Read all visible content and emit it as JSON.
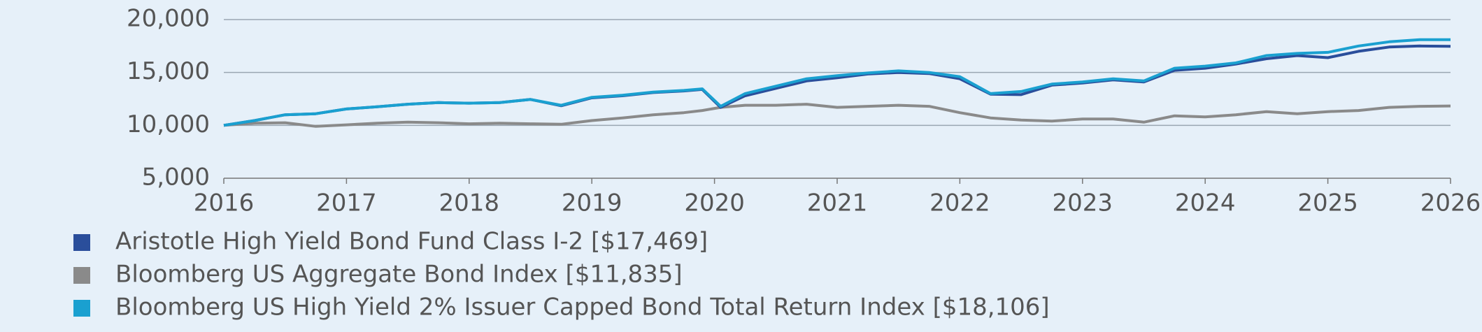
{
  "chart_data": {
    "type": "line",
    "x": [
      2016,
      2016.25,
      2016.5,
      2016.75,
      2017,
      2017.25,
      2017.5,
      2017.75,
      2018,
      2018.25,
      2018.5,
      2018.75,
      2019,
      2019.25,
      2019.5,
      2019.75,
      2019.9,
      2020.05,
      2020.25,
      2020.5,
      2020.75,
      2021,
      2021.25,
      2021.5,
      2021.75,
      2022,
      2022.25,
      2022.5,
      2022.75,
      2023,
      2023.25,
      2023.5,
      2023.75,
      2024,
      2024.25,
      2024.5,
      2024.75,
      2025,
      2025.25,
      2025.5,
      2025.75,
      2026
    ],
    "series": [
      {
        "name": "Aristotle High Yield Bond Fund Class I-2 [$17,469]",
        "color": "#2a4e9b",
        "values": [
          10000,
          10450,
          11000,
          11100,
          11550,
          11750,
          12000,
          12150,
          12100,
          12150,
          12450,
          11850,
          12600,
          12800,
          13100,
          13250,
          13400,
          11700,
          12800,
          13500,
          14200,
          14500,
          14850,
          15000,
          14900,
          14400,
          12950,
          12900,
          13800,
          14000,
          14300,
          14100,
          15200,
          15400,
          15800,
          16300,
          16600,
          16400,
          17000,
          17400,
          17500,
          17469
        ]
      },
      {
        "name": "Bloomberg US Aggregate Bond Index [$11,835]",
        "color": "#8a8a8a",
        "values": [
          10000,
          10200,
          10250,
          9900,
          10050,
          10200,
          10300,
          10250,
          10150,
          10200,
          10150,
          10100,
          10450,
          10700,
          11000,
          11200,
          11400,
          11700,
          11900,
          11900,
          12000,
          11700,
          11800,
          11900,
          11800,
          11200,
          10700,
          10500,
          10400,
          10600,
          10600,
          10300,
          10900,
          10800,
          11000,
          11300,
          11100,
          11300,
          11400,
          11700,
          11800,
          11835
        ]
      },
      {
        "name": "Bloomberg US High Yield 2% Issuer Capped Bond Total Return Index [$18,106]",
        "color": "#1aa0d0",
        "values": [
          10000,
          10450,
          11000,
          11100,
          11550,
          11750,
          12000,
          12150,
          12100,
          12150,
          12450,
          11900,
          12650,
          12850,
          13150,
          13300,
          13450,
          11800,
          13000,
          13700,
          14400,
          14700,
          14950,
          15150,
          15000,
          14600,
          13000,
          13200,
          13900,
          14100,
          14400,
          14200,
          15400,
          15600,
          15900,
          16600,
          16800,
          16900,
          17500,
          17900,
          18100,
          18106
        ]
      }
    ],
    "xlim": [
      2016,
      2026
    ],
    "xticks": [
      2016,
      2017,
      2018,
      2019,
      2020,
      2021,
      2022,
      2023,
      2024,
      2025,
      2026
    ],
    "ylim": [
      5000,
      20000
    ],
    "yticks": [
      {
        "value": 5000,
        "label": "5,000"
      },
      {
        "value": 10000,
        "label": "10,000"
      },
      {
        "value": 15000,
        "label": "15,000"
      },
      {
        "value": 20000,
        "label": "20,000"
      }
    ],
    "grid": true
  }
}
